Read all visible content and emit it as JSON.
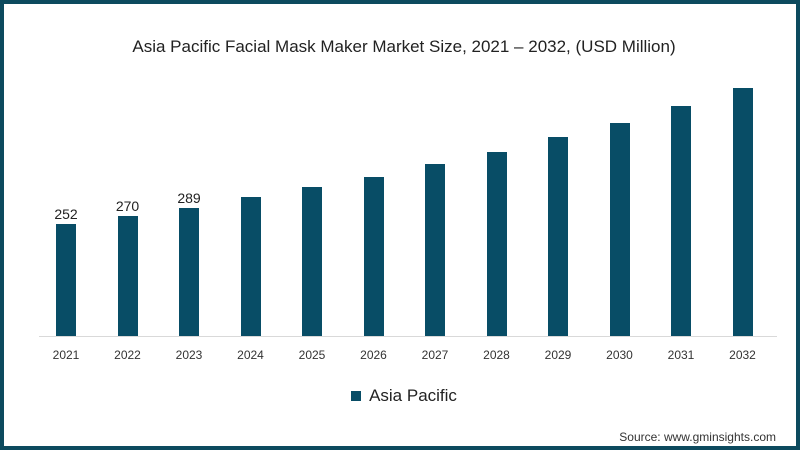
{
  "chart_data": {
    "type": "bar",
    "title": "Asia Pacific Facial Mask Maker Market Size, 2021 – 2032, (USD Million)",
    "categories": [
      "2021",
      "2022",
      "2023",
      "2024",
      "2025",
      "2026",
      "2027",
      "2028",
      "2029",
      "2030",
      "2031",
      "2032"
    ],
    "series": [
      {
        "name": "Asia Pacific",
        "values": [
          252,
          270,
          289,
          312,
          335,
          358,
          387,
          414,
          448,
          479,
          517,
          558
        ],
        "color": "#084d66"
      }
    ],
    "data_labels": {
      "2021": "252",
      "2022": "270",
      "2023": "289"
    },
    "xlabel": "",
    "ylabel": "",
    "grid": false,
    "legend_position": "bottom"
  },
  "source": "Source: www.gminsights.com"
}
